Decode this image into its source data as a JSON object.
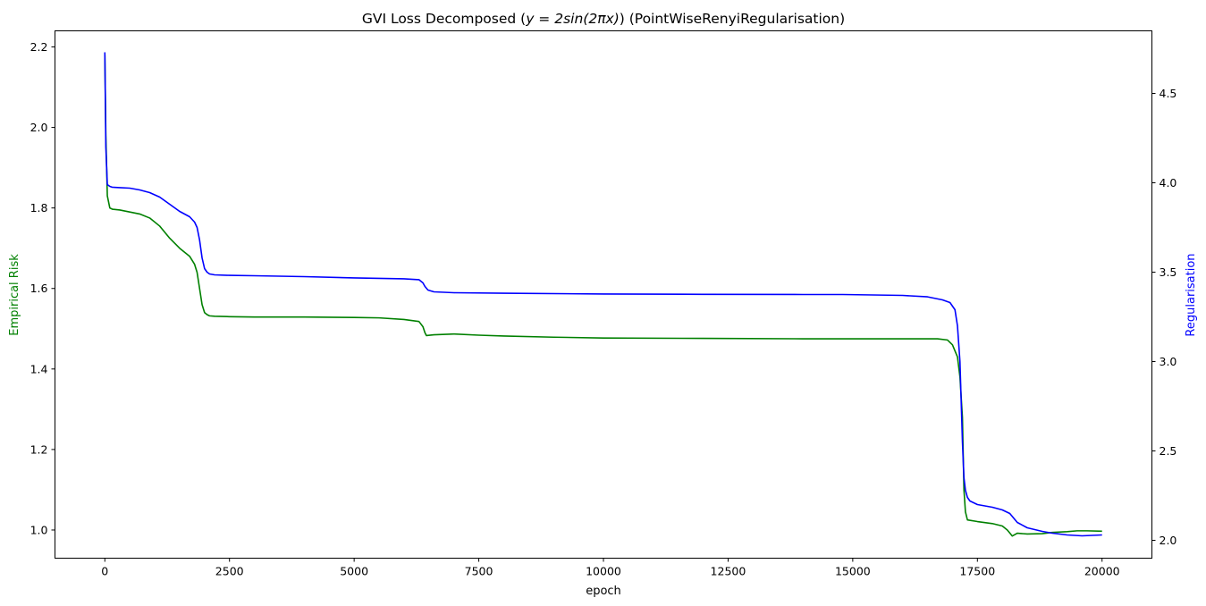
{
  "chart_data": {
    "type": "line",
    "title_prefix": "GVI Loss Decomposed (",
    "title_math": "y = 2sin(2πx)",
    "title_suffix": ") (PointWiseRenyiRegularisation)",
    "xlabel": "epoch",
    "ylabel_left": "Empirical Risk",
    "ylabel_right": "Regularisation",
    "xlim": [
      -1000,
      21000
    ],
    "ylim_left": [
      0.93,
      2.24
    ],
    "ylim_right": [
      1.9,
      4.85
    ],
    "xticks": [
      0,
      2500,
      5000,
      7500,
      10000,
      12500,
      15000,
      17500,
      20000
    ],
    "xtick_labels": [
      "0",
      "2500",
      "5000",
      "7500",
      "10000",
      "12500",
      "15000",
      "17500",
      "20000"
    ],
    "yticks_left": [
      1.0,
      1.2,
      1.4,
      1.6,
      1.8,
      2.0,
      2.2
    ],
    "ytick_labels_left": [
      "1.0",
      "1.2",
      "1.4",
      "1.6",
      "1.8",
      "2.0",
      "2.2"
    ],
    "yticks_right": [
      2.0,
      2.5,
      3.0,
      3.5,
      4.0,
      4.5
    ],
    "ytick_labels_right": [
      "2.0",
      "2.5",
      "3.0",
      "3.5",
      "4.0",
      "4.5"
    ],
    "grid": false,
    "series": [
      {
        "axis": "left",
        "color": "#008000",
        "x": [
          0,
          20,
          50,
          100,
          150,
          300,
          500,
          700,
          900,
          1100,
          1300,
          1500,
          1700,
          1800,
          1850,
          1900,
          1950,
          2000,
          2050,
          2100,
          2200,
          2500,
          3000,
          4000,
          5000,
          5500,
          6000,
          6300,
          6380,
          6420,
          6450,
          6600,
          7000,
          7500,
          8000,
          9000,
          10000,
          12000,
          14000,
          16000,
          16700,
          16900,
          17000,
          17100,
          17150,
          17200,
          17230,
          17260,
          17300,
          17500,
          17800,
          18000,
          18100,
          18200,
          18300,
          18500,
          18800,
          19000,
          19300,
          19500,
          19700,
          20000
        ],
        "y": [
          2.18,
          1.98,
          1.83,
          1.8,
          1.797,
          1.795,
          1.79,
          1.785,
          1.775,
          1.755,
          1.725,
          1.7,
          1.68,
          1.66,
          1.64,
          1.6,
          1.56,
          1.54,
          1.535,
          1.532,
          1.531,
          1.53,
          1.529,
          1.529,
          1.528,
          1.527,
          1.523,
          1.518,
          1.505,
          1.49,
          1.483,
          1.485,
          1.487,
          1.484,
          1.482,
          1.479,
          1.477,
          1.476,
          1.475,
          1.475,
          1.475,
          1.472,
          1.46,
          1.43,
          1.38,
          1.28,
          1.1,
          1.045,
          1.025,
          1.021,
          1.016,
          1.01,
          1.0,
          0.985,
          0.992,
          0.99,
          0.991,
          0.994,
          0.996,
          0.998,
          0.998,
          0.997
        ]
      },
      {
        "axis": "right",
        "color": "#0000ff",
        "x": [
          0,
          20,
          50,
          100,
          150,
          300,
          500,
          700,
          900,
          1100,
          1300,
          1500,
          1700,
          1800,
          1850,
          1900,
          1950,
          2000,
          2050,
          2100,
          2200,
          2500,
          3000,
          4000,
          5000,
          6000,
          6300,
          6380,
          6420,
          6480,
          6600,
          7000,
          8000,
          10000,
          12000,
          14000,
          14800,
          16000,
          16500,
          16800,
          16950,
          17000,
          17050,
          17100,
          17150,
          17200,
          17230,
          17260,
          17300,
          17350,
          17500,
          17800,
          18000,
          18150,
          18300,
          18500,
          18800,
          19000,
          19300,
          19600,
          20000
        ],
        "y": [
          4.73,
          4.2,
          3.99,
          3.98,
          3.975,
          3.973,
          3.97,
          3.96,
          3.945,
          3.92,
          3.88,
          3.84,
          3.81,
          3.78,
          3.75,
          3.68,
          3.58,
          3.52,
          3.5,
          3.49,
          3.485,
          3.482,
          3.48,
          3.475,
          3.468,
          3.463,
          3.458,
          3.44,
          3.42,
          3.4,
          3.39,
          3.385,
          3.382,
          3.378,
          3.376,
          3.375,
          3.375,
          3.37,
          3.362,
          3.345,
          3.33,
          3.31,
          3.29,
          3.2,
          3.0,
          2.55,
          2.35,
          2.28,
          2.24,
          2.22,
          2.2,
          2.185,
          2.17,
          2.15,
          2.1,
          2.07,
          2.05,
          2.04,
          2.03,
          2.025,
          2.03
        ]
      }
    ]
  }
}
